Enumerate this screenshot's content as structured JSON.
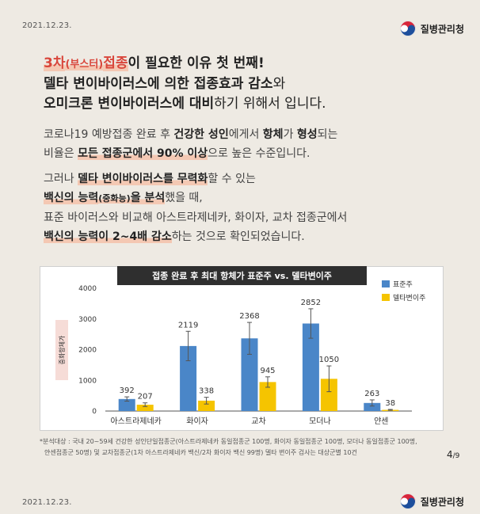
{
  "header": {
    "date": "2021.12.23.",
    "org": "질병관리청"
  },
  "footer": {
    "date": "2021.12.23.",
    "org": "질병관리청"
  },
  "headline": {
    "l1_a": "3차",
    "l1_b": "(부스터)",
    "l1_c": "접종",
    "l1_d": "이 필요한 이유 첫 번째!",
    "l2_a": "델타 변이바이러스에 의한 접종효과 감소",
    "l2_b": "와",
    "l3_a": "오미크론 변이바이러스에 대비",
    "l3_b": "하기 위해서 입니다."
  },
  "para1": {
    "a": "코로나19 예방접종 완료 후 ",
    "b": "건강한 성인",
    "c": "에게서 ",
    "d": "항체",
    "e": "가 ",
    "f": "형성",
    "g": "되는",
    "h": "비율은 ",
    "i": "모든 접종군에서 90% 이상",
    "j": "으로 높은 수준입니다."
  },
  "para2": {
    "a": "그러나 ",
    "b": "델타 변이바이러스를 무력화",
    "c": "할 수 있는",
    "d": "백신의 능력",
    "e": "(중화능)",
    "f": "을 분석",
    "g": "했을 때,",
    "h": "표준 바이러스와 비교해 아스트라제네카, 화이자, 교차 접종군에서",
    "i": "백신의 능력이 2~4배 감소",
    "j": "하는 것으로 확인되었습니다."
  },
  "chart_data": {
    "type": "bar",
    "title": "접종 완료 후 최대 항체가 표준주 vs. 델타변이주",
    "ylabel": "중화항체가",
    "ylim": [
      0,
      4000
    ],
    "yticks": [
      "0",
      "1000",
      "2000",
      "3000",
      "4000"
    ],
    "categories": [
      "아스트라제네카",
      "화이자",
      "교차",
      "모더나",
      "얀센"
    ],
    "series": [
      {
        "name": "표준주",
        "values": [
          392,
          2119,
          2368,
          2852,
          263
        ],
        "errors": [
          70,
          480,
          520,
          480,
          100
        ]
      },
      {
        "name": "델타변이주",
        "values": [
          207,
          338,
          945,
          1050,
          38
        ],
        "errors": [
          60,
          110,
          170,
          420,
          15
        ]
      }
    ],
    "value_labels": [
      [
        "392",
        "207"
      ],
      [
        "2119",
        "338"
      ],
      [
        "2368",
        "945"
      ],
      [
        "2852",
        "1050"
      ],
      [
        "263",
        "38"
      ]
    ],
    "colors": {
      "standard": "#4a86c8",
      "delta": "#f5c400"
    },
    "legend_placement": "top-right"
  },
  "note": {
    "l1": "*분석대상 : 국내 20~59세 건강한 성인단일접종군(아스트라제네카 동일접종군 100명, 화이자 동일접종군 100명, 모더나 동일접종군 100명,",
    "l2": "얀센접종군 50명) 및 교차접종군(1차 아스트라제네카 백신/2차 화이자 백신 99명) 델타 변이주 검사는 대상군별 10건"
  },
  "page": {
    "current": "4",
    "total": "/9"
  }
}
